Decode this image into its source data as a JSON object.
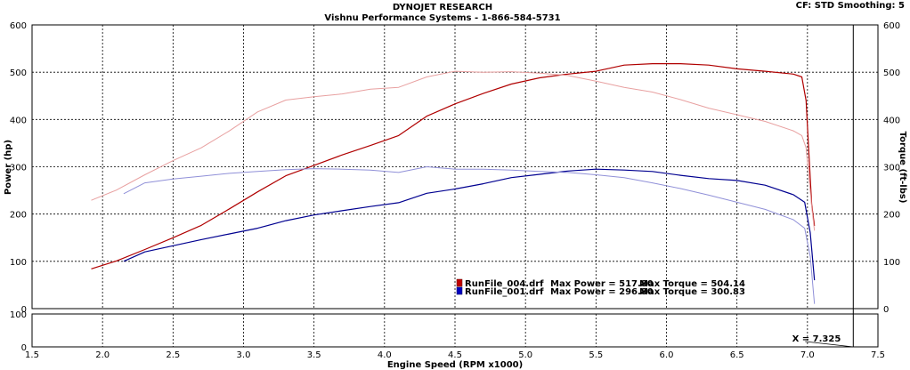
{
  "header": {
    "title": "DYNOJET RESEARCH",
    "subtitle": "Vishnu Performance Systems - 1-866-584-5731",
    "settings": "CF: STD   Smoothing: 5"
  },
  "chart_data": {
    "type": "line",
    "xlabel": "Engine Speed (RPM x1000)",
    "ylabel_left": "Power (hp)",
    "ylabel_right": "Torque (ft-lbs)",
    "xlim": [
      1.5,
      7.5
    ],
    "ylim": [
      0,
      600
    ],
    "xticks": [
      "1.5",
      "2.0",
      "2.5",
      "3.0",
      "3.5",
      "4.0",
      "4.5",
      "5.0",
      "5.5",
      "6.0",
      "6.5",
      "7.0",
      "7.5"
    ],
    "yticks": [
      "0",
      "100",
      "200",
      "300",
      "400",
      "500",
      "600"
    ],
    "grid": true,
    "secondary_panel": {
      "ylim": [
        0,
        100
      ],
      "yticks": [
        "0",
        "100"
      ]
    },
    "cursor": {
      "label": "X = 7.325",
      "x": 7.325
    },
    "legend": [
      {
        "file": "RunFile_004.drf",
        "power_text": "Max Power = 517.80",
        "torque_text": "Max Torque = 504.14",
        "color": "#c00000"
      },
      {
        "file": "RunFile_001.drf",
        "power_text": "Max Power = 296.80",
        "torque_text": "Max Torque = 300.83",
        "color": "#0000a0"
      }
    ],
    "series": [
      {
        "name": "RunFile_004.drf Power",
        "kind": "power",
        "color": "#b00000",
        "width": 1.2,
        "x": [
          1.92,
          2.1,
          2.3,
          2.5,
          2.7,
          2.9,
          3.1,
          3.3,
          3.5,
          3.7,
          3.9,
          4.1,
          4.3,
          4.5,
          4.7,
          4.9,
          5.1,
          5.3,
          5.5,
          5.7,
          5.9,
          6.1,
          6.3,
          6.5,
          6.7,
          6.9,
          6.96,
          6.99,
          7.01,
          7.03,
          7.05
        ],
        "y": [
          84,
          101,
          125,
          150,
          176,
          211,
          247,
          281,
          303,
          325,
          345,
          366,
          407,
          433,
          455,
          475,
          488,
          496,
          502,
          515,
          518,
          518,
          515,
          507,
          502,
          496,
          490,
          440,
          330,
          220,
          175
        ]
      },
      {
        "name": "RunFile_004.drf Torque",
        "kind": "torque",
        "color": "#e8a0a0",
        "width": 1.0,
        "x": [
          1.92,
          2.1,
          2.3,
          2.5,
          2.7,
          2.9,
          3.1,
          3.3,
          3.5,
          3.7,
          3.9,
          4.1,
          4.3,
          4.5,
          4.7,
          4.9,
          5.1,
          5.3,
          5.5,
          5.7,
          5.9,
          6.1,
          6.3,
          6.5,
          6.7,
          6.9,
          6.96,
          6.99,
          7.01,
          7.03,
          7.05
        ],
        "y": [
          229,
          251,
          283,
          313,
          340,
          376,
          416,
          441,
          448,
          454,
          464,
          468,
          490,
          502,
          500,
          501,
          498,
          493,
          481,
          468,
          458,
          442,
          424,
          410,
          396,
          376,
          366,
          340,
          280,
          215,
          165
        ]
      },
      {
        "name": "RunFile_001.drf Power",
        "kind": "power",
        "color": "#000090",
        "width": 1.2,
        "x": [
          2.15,
          2.3,
          2.5,
          2.7,
          2.9,
          3.1,
          3.3,
          3.5,
          3.7,
          3.9,
          4.1,
          4.3,
          4.5,
          4.7,
          4.9,
          5.1,
          5.3,
          5.5,
          5.7,
          5.9,
          6.1,
          6.3,
          6.5,
          6.7,
          6.9,
          6.98,
          7.02,
          7.05
        ],
        "y": [
          100,
          120,
          133,
          146,
          158,
          170,
          186,
          198,
          207,
          216,
          224,
          244,
          253,
          264,
          277,
          284,
          291,
          295,
          293,
          290,
          282,
          275,
          271,
          261,
          241,
          225,
          160,
          60
        ]
      },
      {
        "name": "RunFile_001.drf Torque",
        "kind": "torque",
        "color": "#9090d8",
        "width": 1.0,
        "x": [
          2.15,
          2.3,
          2.5,
          2.7,
          2.9,
          3.1,
          3.3,
          3.5,
          3.7,
          3.9,
          4.1,
          4.3,
          4.5,
          4.7,
          4.9,
          5.1,
          5.3,
          5.5,
          5.7,
          5.9,
          6.1,
          6.3,
          6.5,
          6.7,
          6.9,
          6.98,
          7.02,
          7.05
        ],
        "y": [
          243,
          266,
          274,
          280,
          286,
          290,
          294,
          296,
          295,
          293,
          288,
          300,
          295,
          295,
          293,
          290,
          288,
          283,
          277,
          266,
          254,
          240,
          225,
          210,
          188,
          170,
          110,
          10
        ]
      }
    ]
  }
}
